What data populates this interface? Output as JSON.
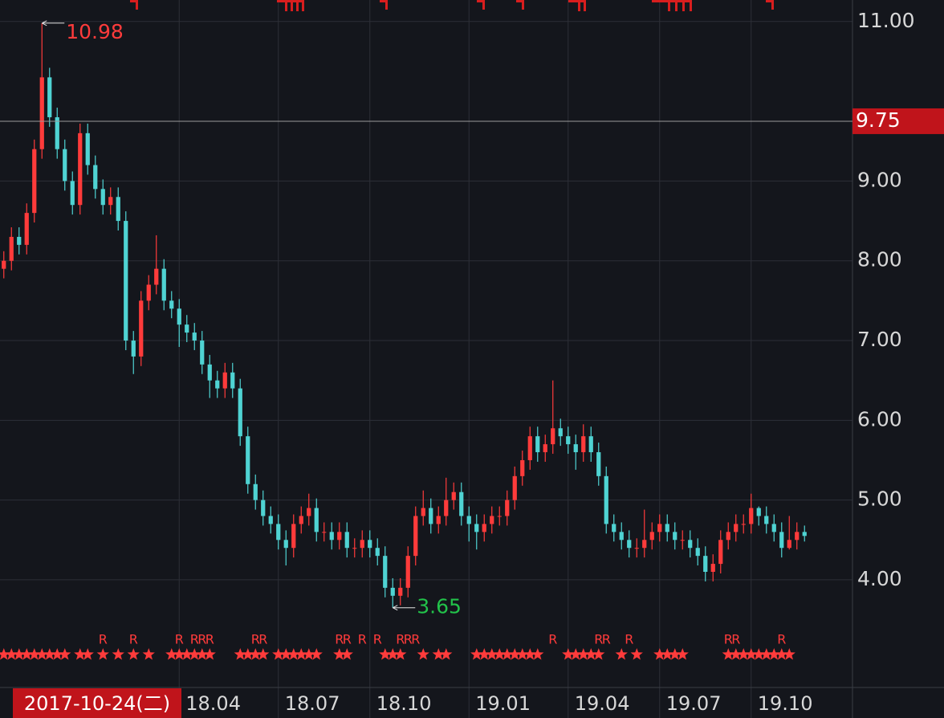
{
  "chart_data": {
    "type": "candlestick",
    "date_label": "2017-10-24(二)",
    "xlim": [
      -0.5,
      105.5
    ],
    "ylim": [
      2.66,
      11.27
    ],
    "yticks": [
      {
        "value": 4,
        "label": "4.00"
      },
      {
        "value": 5,
        "label": "5.00"
      },
      {
        "value": 6,
        "label": "6.00"
      },
      {
        "value": 7,
        "label": "7.00"
      },
      {
        "value": 8,
        "label": "8.00"
      },
      {
        "value": 9,
        "label": "9.00"
      },
      {
        "value": 11,
        "label": "11.00"
      }
    ],
    "xticks": [
      {
        "value": 23,
        "label": "18.04"
      },
      {
        "value": 36,
        "label": "18.07"
      },
      {
        "value": 48,
        "label": "18.10"
      },
      {
        "value": 61,
        "label": "19.01"
      },
      {
        "value": 74,
        "label": "19.04"
      },
      {
        "value": 86,
        "label": "19.07"
      },
      {
        "value": 98,
        "label": "19.10"
      }
    ],
    "crosshair": {
      "value": 9.75,
      "label": "9.75"
    },
    "grid": true,
    "up_color": "#ff3b3b",
    "down_color": "#4fd3d3",
    "max_index": 5,
    "min_index": 51,
    "candles": {
      "open": [
        7.9,
        8.0,
        8.3,
        8.2,
        8.6,
        9.4,
        10.3,
        9.8,
        9.4,
        9.0,
        8.7,
        9.6,
        9.2,
        8.9,
        8.7,
        8.8,
        8.5,
        7.0,
        6.8,
        7.5,
        7.7,
        7.9,
        7.5,
        7.4,
        7.2,
        7.1,
        7.0,
        6.7,
        6.5,
        6.4,
        6.6,
        6.4,
        5.8,
        5.2,
        5.0,
        4.8,
        4.7,
        4.5,
        4.4,
        4.7,
        4.8,
        4.9,
        4.6,
        4.6,
        4.5,
        4.6,
        4.4,
        4.4,
        4.5,
        4.4,
        4.3,
        3.9,
        3.8,
        3.9,
        4.3,
        4.8,
        4.9,
        4.7,
        4.8,
        5.0,
        5.1,
        4.8,
        4.7,
        4.6,
        4.7,
        4.8,
        4.8,
        5.0,
        5.3,
        5.5,
        5.8,
        5.6,
        5.7,
        5.9,
        5.8,
        5.7,
        5.6,
        5.8,
        5.6,
        5.3,
        4.7,
        4.6,
        4.5,
        4.4,
        4.4,
        4.5,
        4.6,
        4.7,
        4.6,
        4.5,
        4.5,
        4.4,
        4.3,
        4.1,
        4.2,
        4.5,
        4.6,
        4.7,
        4.7,
        4.9,
        4.8,
        4.7,
        4.6,
        4.4,
        4.5,
        4.6
      ],
      "high": [
        8.12,
        8.42,
        8.42,
        8.72,
        9.52,
        10.98,
        10.42,
        9.92,
        9.52,
        9.12,
        9.72,
        9.72,
        9.32,
        9.02,
        8.92,
        8.92,
        8.62,
        7.12,
        7.62,
        7.82,
        8.32,
        8.02,
        7.62,
        7.52,
        7.32,
        7.22,
        7.12,
        6.82,
        6.62,
        6.72,
        6.72,
        6.52,
        5.92,
        5.32,
        5.12,
        4.92,
        4.82,
        4.62,
        4.82,
        4.92,
        5.08,
        5.02,
        4.72,
        4.72,
        4.72,
        4.72,
        4.52,
        4.62,
        4.62,
        4.52,
        4.42,
        4.02,
        4.02,
        4.42,
        4.92,
        5.12,
        5.02,
        4.92,
        5.28,
        5.22,
        5.22,
        4.92,
        4.82,
        4.82,
        4.92,
        4.92,
        5.12,
        5.42,
        5.62,
        5.92,
        5.92,
        5.82,
        6.5,
        6.02,
        5.92,
        5.82,
        5.95,
        5.92,
        5.72,
        5.42,
        4.82,
        4.72,
        4.62,
        4.52,
        4.88,
        4.72,
        4.82,
        4.82,
        4.72,
        4.62,
        4.62,
        4.52,
        4.42,
        4.32,
        4.62,
        4.72,
        4.82,
        4.82,
        5.08,
        4.92,
        4.92,
        4.82,
        4.72,
        4.8,
        4.72,
        4.68
      ],
      "low": [
        7.78,
        7.88,
        8.08,
        8.08,
        8.48,
        9.28,
        9.68,
        9.28,
        8.88,
        8.58,
        8.58,
        9.08,
        8.78,
        8.58,
        8.58,
        8.38,
        6.88,
        6.58,
        6.68,
        7.38,
        7.58,
        7.38,
        7.28,
        6.92,
        6.98,
        6.88,
        6.58,
        6.28,
        6.28,
        6.28,
        6.28,
        5.68,
        5.08,
        4.88,
        4.68,
        4.58,
        4.38,
        4.18,
        4.28,
        4.58,
        4.68,
        4.48,
        4.48,
        4.38,
        4.38,
        4.28,
        4.28,
        4.28,
        4.28,
        4.18,
        3.78,
        3.65,
        3.68,
        3.78,
        4.18,
        4.68,
        4.58,
        4.58,
        4.68,
        4.88,
        4.68,
        4.48,
        4.38,
        4.48,
        4.58,
        4.68,
        4.68,
        4.88,
        5.18,
        5.38,
        5.48,
        5.48,
        5.58,
        5.68,
        5.58,
        5.38,
        5.48,
        5.48,
        5.18,
        4.58,
        4.48,
        4.38,
        4.28,
        4.28,
        4.28,
        4.38,
        4.48,
        4.48,
        4.38,
        4.38,
        4.28,
        4.18,
        3.98,
        3.98,
        4.08,
        4.38,
        4.48,
        4.58,
        4.58,
        4.68,
        4.58,
        4.48,
        4.28,
        4.38,
        4.38,
        4.48
      ],
      "close": [
        8.0,
        8.3,
        8.2,
        8.6,
        9.4,
        10.3,
        9.8,
        9.4,
        9.0,
        8.7,
        9.6,
        9.2,
        8.9,
        8.7,
        8.8,
        8.5,
        7.0,
        6.8,
        7.5,
        7.7,
        7.9,
        7.5,
        7.4,
        7.2,
        7.1,
        7.0,
        6.7,
        6.5,
        6.4,
        6.6,
        6.4,
        5.8,
        5.2,
        5.0,
        4.8,
        4.7,
        4.5,
        4.4,
        4.7,
        4.8,
        4.9,
        4.6,
        4.6,
        4.5,
        4.6,
        4.4,
        4.4,
        4.5,
        4.4,
        4.3,
        3.9,
        3.8,
        3.9,
        4.3,
        4.8,
        4.9,
        4.7,
        4.8,
        5.0,
        5.1,
        4.8,
        4.7,
        4.6,
        4.7,
        4.8,
        4.8,
        5.0,
        5.3,
        5.5,
        5.8,
        5.6,
        5.7,
        5.9,
        5.8,
        5.7,
        5.6,
        5.8,
        5.6,
        5.3,
        4.7,
        4.6,
        4.5,
        4.4,
        4.4,
        4.5,
        4.6,
        4.7,
        4.6,
        4.5,
        4.5,
        4.4,
        4.3,
        4.1,
        4.2,
        4.5,
        4.6,
        4.7,
        4.7,
        4.9,
        4.8,
        4.7,
        4.6,
        4.4,
        4.5,
        4.6,
        4.55
      ]
    },
    "signal_label": "R",
    "signal_weeks": [
      13,
      17,
      23,
      25,
      26,
      27,
      33,
      34,
      44,
      45,
      47,
      49,
      52,
      53,
      54,
      72,
      78,
      79,
      82,
      95,
      96,
      102
    ],
    "star_weeks": [
      0,
      1,
      2,
      3,
      4,
      5,
      6,
      7,
      8,
      10,
      11,
      13,
      15,
      17,
      19,
      22,
      23,
      24,
      25,
      26,
      27,
      31,
      32,
      33,
      34,
      36,
      37,
      38,
      39,
      40,
      41,
      44,
      45,
      50,
      51,
      52,
      55,
      57,
      58,
      62,
      63,
      64,
      65,
      66,
      67,
      68,
      69,
      70,
      74,
      75,
      76,
      77,
      78,
      81,
      83,
      86,
      87,
      88,
      89,
      95,
      96,
      97,
      98,
      99,
      100,
      101,
      102,
      103
    ]
  }
}
